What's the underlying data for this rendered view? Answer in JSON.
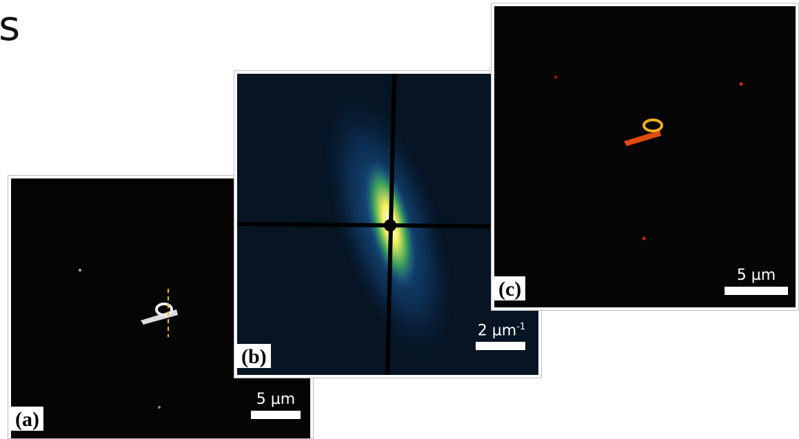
{
  "header": {
    "fragment": "s"
  },
  "panels": [
    {
      "label": "(a)",
      "scale_bar": "5 µm"
    },
    {
      "label": "(b)",
      "scale_bar": "2 µm",
      "scale_bar_exponent": "-1"
    },
    {
      "label": "(c)",
      "scale_bar": "5 µm"
    }
  ]
}
